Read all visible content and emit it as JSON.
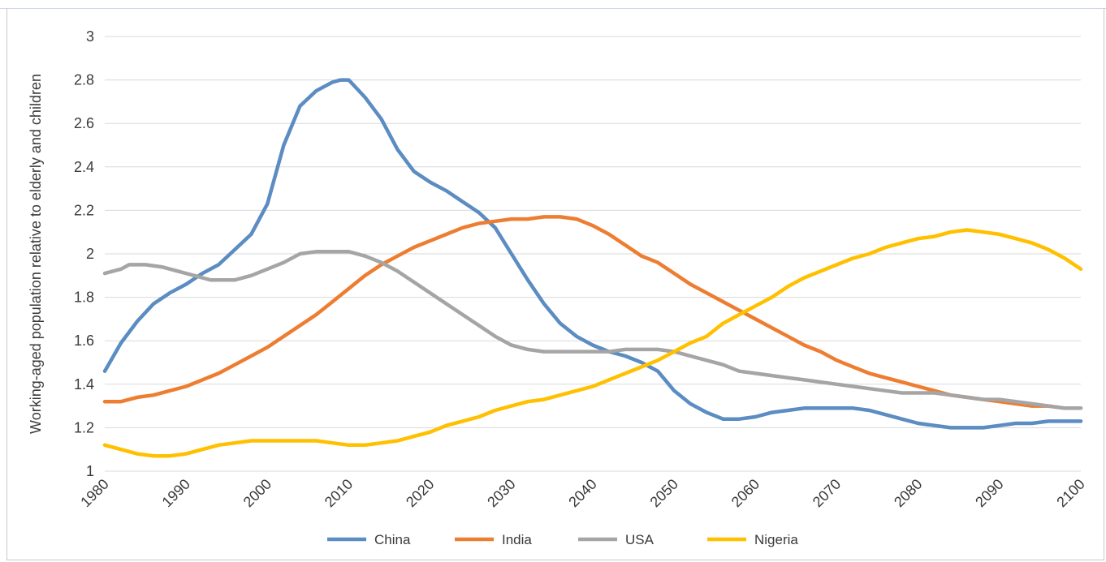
{
  "chart_data": {
    "type": "line",
    "title": "",
    "xlabel": "",
    "ylabel": "Working-aged population relative to elderly and children",
    "xlim": [
      1980,
      2100
    ],
    "ylim": [
      1,
      3
    ],
    "x_ticks": [
      "1980",
      "1990",
      "2000",
      "2010",
      "2020",
      "2030",
      "2040",
      "2050",
      "2060",
      "2070",
      "2080",
      "2090",
      "2100"
    ],
    "y_ticks": [
      "1",
      "1.2",
      "1.4",
      "1.6",
      "1.8",
      "2",
      "2.2",
      "2.4",
      "2.6",
      "2.8",
      "3"
    ],
    "grid": "horizontal",
    "legend_position": "bottom",
    "series": [
      {
        "name": "China",
        "color": "#5b8cc2",
        "points": [
          [
            1980,
            1.46
          ],
          [
            1982,
            1.59
          ],
          [
            1984,
            1.69
          ],
          [
            1986,
            1.77
          ],
          [
            1988,
            1.82
          ],
          [
            1990,
            1.86
          ],
          [
            1992,
            1.91
          ],
          [
            1994,
            1.95
          ],
          [
            1996,
            2.02
          ],
          [
            1998,
            2.09
          ],
          [
            2000,
            2.23
          ],
          [
            2002,
            2.5
          ],
          [
            2004,
            2.68
          ],
          [
            2006,
            2.75
          ],
          [
            2008,
            2.79
          ],
          [
            2009,
            2.8
          ],
          [
            2010,
            2.8
          ],
          [
            2012,
            2.72
          ],
          [
            2014,
            2.62
          ],
          [
            2016,
            2.48
          ],
          [
            2018,
            2.38
          ],
          [
            2020,
            2.33
          ],
          [
            2022,
            2.29
          ],
          [
            2024,
            2.24
          ],
          [
            2026,
            2.19
          ],
          [
            2028,
            2.12
          ],
          [
            2030,
            2.0
          ],
          [
            2032,
            1.88
          ],
          [
            2034,
            1.77
          ],
          [
            2036,
            1.68
          ],
          [
            2038,
            1.62
          ],
          [
            2040,
            1.58
          ],
          [
            2042,
            1.55
          ],
          [
            2044,
            1.53
          ],
          [
            2046,
            1.5
          ],
          [
            2048,
            1.46
          ],
          [
            2050,
            1.37
          ],
          [
            2052,
            1.31
          ],
          [
            2054,
            1.27
          ],
          [
            2056,
            1.24
          ],
          [
            2058,
            1.24
          ],
          [
            2060,
            1.25
          ],
          [
            2062,
            1.27
          ],
          [
            2064,
            1.28
          ],
          [
            2066,
            1.29
          ],
          [
            2068,
            1.29
          ],
          [
            2070,
            1.29
          ],
          [
            2072,
            1.29
          ],
          [
            2074,
            1.28
          ],
          [
            2076,
            1.26
          ],
          [
            2078,
            1.24
          ],
          [
            2080,
            1.22
          ],
          [
            2082,
            1.21
          ],
          [
            2084,
            1.2
          ],
          [
            2086,
            1.2
          ],
          [
            2088,
            1.2
          ],
          [
            2090,
            1.21
          ],
          [
            2092,
            1.22
          ],
          [
            2094,
            1.22
          ],
          [
            2096,
            1.23
          ],
          [
            2098,
            1.23
          ],
          [
            2100,
            1.23
          ]
        ]
      },
      {
        "name": "India",
        "color": "#ed7d31",
        "points": [
          [
            1980,
            1.32
          ],
          [
            1982,
            1.32
          ],
          [
            1984,
            1.34
          ],
          [
            1986,
            1.35
          ],
          [
            1988,
            1.37
          ],
          [
            1990,
            1.39
          ],
          [
            1992,
            1.42
          ],
          [
            1994,
            1.45
          ],
          [
            1996,
            1.49
          ],
          [
            1998,
            1.53
          ],
          [
            2000,
            1.57
          ],
          [
            2002,
            1.62
          ],
          [
            2004,
            1.67
          ],
          [
            2006,
            1.72
          ],
          [
            2008,
            1.78
          ],
          [
            2010,
            1.84
          ],
          [
            2012,
            1.9
          ],
          [
            2014,
            1.95
          ],
          [
            2016,
            1.99
          ],
          [
            2018,
            2.03
          ],
          [
            2020,
            2.06
          ],
          [
            2022,
            2.09
          ],
          [
            2024,
            2.12
          ],
          [
            2026,
            2.14
          ],
          [
            2028,
            2.15
          ],
          [
            2030,
            2.16
          ],
          [
            2032,
            2.16
          ],
          [
            2034,
            2.17
          ],
          [
            2036,
            2.17
          ],
          [
            2038,
            2.16
          ],
          [
            2040,
            2.13
          ],
          [
            2042,
            2.09
          ],
          [
            2044,
            2.04
          ],
          [
            2046,
            1.99
          ],
          [
            2048,
            1.96
          ],
          [
            2050,
            1.91
          ],
          [
            2052,
            1.86
          ],
          [
            2054,
            1.82
          ],
          [
            2056,
            1.78
          ],
          [
            2058,
            1.74
          ],
          [
            2060,
            1.7
          ],
          [
            2062,
            1.66
          ],
          [
            2064,
            1.62
          ],
          [
            2066,
            1.58
          ],
          [
            2068,
            1.55
          ],
          [
            2070,
            1.51
          ],
          [
            2072,
            1.48
          ],
          [
            2074,
            1.45
          ],
          [
            2076,
            1.43
          ],
          [
            2078,
            1.41
          ],
          [
            2080,
            1.39
          ],
          [
            2082,
            1.37
          ],
          [
            2084,
            1.35
          ],
          [
            2086,
            1.34
          ],
          [
            2088,
            1.33
          ],
          [
            2090,
            1.32
          ],
          [
            2092,
            1.31
          ],
          [
            2094,
            1.3
          ],
          [
            2096,
            1.3
          ],
          [
            2098,
            1.29
          ],
          [
            2100,
            1.29
          ]
        ]
      },
      {
        "name": "USA",
        "color": "#a5a5a5",
        "points": [
          [
            1980,
            1.91
          ],
          [
            1982,
            1.93
          ],
          [
            1983,
            1.95
          ],
          [
            1985,
            1.95
          ],
          [
            1987,
            1.94
          ],
          [
            1989,
            1.92
          ],
          [
            1991,
            1.9
          ],
          [
            1993,
            1.88
          ],
          [
            1996,
            1.88
          ],
          [
            1998,
            1.9
          ],
          [
            2000,
            1.93
          ],
          [
            2002,
            1.96
          ],
          [
            2004,
            2.0
          ],
          [
            2006,
            2.01
          ],
          [
            2008,
            2.01
          ],
          [
            2010,
            2.01
          ],
          [
            2012,
            1.99
          ],
          [
            2014,
            1.96
          ],
          [
            2016,
            1.92
          ],
          [
            2018,
            1.87
          ],
          [
            2020,
            1.82
          ],
          [
            2022,
            1.77
          ],
          [
            2024,
            1.72
          ],
          [
            2026,
            1.67
          ],
          [
            2028,
            1.62
          ],
          [
            2030,
            1.58
          ],
          [
            2032,
            1.56
          ],
          [
            2034,
            1.55
          ],
          [
            2036,
            1.55
          ],
          [
            2038,
            1.55
          ],
          [
            2040,
            1.55
          ],
          [
            2042,
            1.55
          ],
          [
            2044,
            1.56
          ],
          [
            2046,
            1.56
          ],
          [
            2048,
            1.56
          ],
          [
            2050,
            1.55
          ],
          [
            2052,
            1.53
          ],
          [
            2054,
            1.51
          ],
          [
            2056,
            1.49
          ],
          [
            2058,
            1.46
          ],
          [
            2060,
            1.45
          ],
          [
            2062,
            1.44
          ],
          [
            2064,
            1.43
          ],
          [
            2066,
            1.42
          ],
          [
            2068,
            1.41
          ],
          [
            2070,
            1.4
          ],
          [
            2072,
            1.39
          ],
          [
            2074,
            1.38
          ],
          [
            2076,
            1.37
          ],
          [
            2078,
            1.36
          ],
          [
            2080,
            1.36
          ],
          [
            2082,
            1.36
          ],
          [
            2084,
            1.35
          ],
          [
            2086,
            1.34
          ],
          [
            2088,
            1.33
          ],
          [
            2090,
            1.33
          ],
          [
            2092,
            1.32
          ],
          [
            2094,
            1.31
          ],
          [
            2096,
            1.3
          ],
          [
            2098,
            1.29
          ],
          [
            2100,
            1.29
          ]
        ]
      },
      {
        "name": "Nigeria",
        "color": "#ffc000",
        "points": [
          [
            1980,
            1.12
          ],
          [
            1982,
            1.1
          ],
          [
            1984,
            1.08
          ],
          [
            1986,
            1.07
          ],
          [
            1988,
            1.07
          ],
          [
            1990,
            1.08
          ],
          [
            1992,
            1.1
          ],
          [
            1994,
            1.12
          ],
          [
            1996,
            1.13
          ],
          [
            1998,
            1.14
          ],
          [
            2000,
            1.14
          ],
          [
            2002,
            1.14
          ],
          [
            2004,
            1.14
          ],
          [
            2006,
            1.14
          ],
          [
            2008,
            1.13
          ],
          [
            2010,
            1.12
          ],
          [
            2012,
            1.12
          ],
          [
            2014,
            1.13
          ],
          [
            2016,
            1.14
          ],
          [
            2018,
            1.16
          ],
          [
            2020,
            1.18
          ],
          [
            2022,
            1.21
          ],
          [
            2024,
            1.23
          ],
          [
            2026,
            1.25
          ],
          [
            2028,
            1.28
          ],
          [
            2030,
            1.3
          ],
          [
            2032,
            1.32
          ],
          [
            2034,
            1.33
          ],
          [
            2036,
            1.35
          ],
          [
            2038,
            1.37
          ],
          [
            2040,
            1.39
          ],
          [
            2042,
            1.42
          ],
          [
            2044,
            1.45
          ],
          [
            2046,
            1.48
          ],
          [
            2048,
            1.51
          ],
          [
            2050,
            1.55
          ],
          [
            2052,
            1.59
          ],
          [
            2054,
            1.62
          ],
          [
            2056,
            1.68
          ],
          [
            2058,
            1.72
          ],
          [
            2060,
            1.76
          ],
          [
            2062,
            1.8
          ],
          [
            2064,
            1.85
          ],
          [
            2066,
            1.89
          ],
          [
            2068,
            1.92
          ],
          [
            2070,
            1.95
          ],
          [
            2072,
            1.98
          ],
          [
            2074,
            2.0
          ],
          [
            2076,
            2.03
          ],
          [
            2078,
            2.05
          ],
          [
            2080,
            2.07
          ],
          [
            2082,
            2.08
          ],
          [
            2084,
            2.1
          ],
          [
            2086,
            2.11
          ],
          [
            2088,
            2.1
          ],
          [
            2090,
            2.09
          ],
          [
            2092,
            2.07
          ],
          [
            2094,
            2.05
          ],
          [
            2096,
            2.02
          ],
          [
            2098,
            1.98
          ],
          [
            2100,
            1.93
          ]
        ]
      }
    ]
  }
}
